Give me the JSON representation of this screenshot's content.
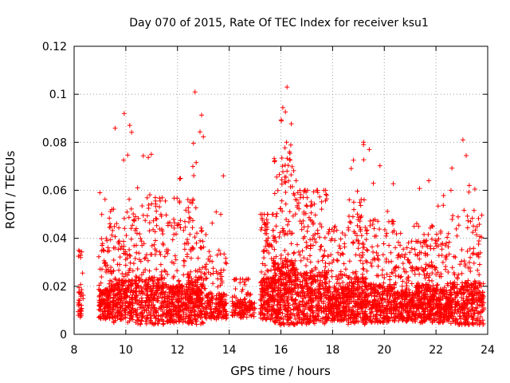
{
  "chart_data": {
    "type": "scatter",
    "title": "Day 070 of 2015, Rate Of TEC Index for receiver ksu1",
    "xlabel": "GPS time / hours",
    "ylabel": "ROTI / TECUs",
    "xlim": [
      8,
      24
    ],
    "ylim": [
      0,
      0.12
    ],
    "x_ticks": [
      8,
      10,
      12,
      14,
      16,
      18,
      20,
      22,
      24
    ],
    "x_tick_labels": [
      "8",
      "10",
      "12",
      "14",
      "16",
      "18",
      "20",
      "22",
      "24"
    ],
    "y_ticks": [
      0,
      0.02,
      0.04,
      0.06,
      0.08,
      0.1,
      0.12
    ],
    "y_tick_labels": [
      "0",
      "0.02",
      "0.04",
      "0.06",
      "0.08",
      "0.1",
      "0.12"
    ],
    "grid": true,
    "marker": "+",
    "color": "#ff0000",
    "series": [
      {
        "name": "ROTI",
        "generator_note": "dense cluster of points; approximate envelope used",
        "segments": [
          {
            "x0": 8.15,
            "x1": 8.35,
            "base": 0.012,
            "spread": 0.012,
            "peak": 0.035,
            "density": 40
          },
          {
            "x0": 8.95,
            "x1": 9.35,
            "base": 0.012,
            "spread": 0.014,
            "peak": 0.059,
            "density": 140
          },
          {
            "x0": 9.35,
            "x1": 10.3,
            "base": 0.013,
            "spread": 0.02,
            "peak": 0.092,
            "density": 320
          },
          {
            "x0": 10.3,
            "x1": 11.5,
            "base": 0.013,
            "spread": 0.022,
            "peak": 0.075,
            "density": 360
          },
          {
            "x0": 11.5,
            "x1": 12.4,
            "base": 0.012,
            "spread": 0.018,
            "peak": 0.065,
            "density": 280
          },
          {
            "x0": 12.4,
            "x1": 13.0,
            "base": 0.013,
            "spread": 0.022,
            "peak": 0.101,
            "density": 240
          },
          {
            "x0": 13.0,
            "x1": 13.9,
            "base": 0.011,
            "spread": 0.012,
            "peak": 0.066,
            "density": 200
          },
          {
            "x0": 14.1,
            "x1": 15.0,
            "base": 0.01,
            "spread": 0.008,
            "peak": 0.023,
            "density": 140
          },
          {
            "x0": 15.2,
            "x1": 15.7,
            "base": 0.014,
            "spread": 0.02,
            "peak": 0.05,
            "density": 200
          },
          {
            "x0": 15.7,
            "x1": 16.6,
            "base": 0.016,
            "spread": 0.03,
            "peak": 0.103,
            "density": 420
          },
          {
            "x0": 16.6,
            "x1": 17.8,
            "base": 0.014,
            "spread": 0.024,
            "peak": 0.06,
            "density": 420
          },
          {
            "x0": 17.8,
            "x1": 18.6,
            "base": 0.012,
            "spread": 0.016,
            "peak": 0.045,
            "density": 260
          },
          {
            "x0": 18.6,
            "x1": 19.3,
            "base": 0.013,
            "spread": 0.022,
            "peak": 0.08,
            "density": 280
          },
          {
            "x0": 19.3,
            "x1": 20.4,
            "base": 0.012,
            "spread": 0.018,
            "peak": 0.077,
            "density": 320
          },
          {
            "x0": 20.4,
            "x1": 21.2,
            "base": 0.011,
            "spread": 0.014,
            "peak": 0.045,
            "density": 240
          },
          {
            "x0": 21.2,
            "x1": 21.9,
            "base": 0.012,
            "spread": 0.018,
            "peak": 0.064,
            "density": 260
          },
          {
            "x0": 21.9,
            "x1": 22.6,
            "base": 0.011,
            "spread": 0.016,
            "peak": 0.06,
            "density": 240
          },
          {
            "x0": 22.6,
            "x1": 23.85,
            "base": 0.012,
            "spread": 0.02,
            "peak": 0.081,
            "density": 360
          }
        ]
      }
    ]
  }
}
